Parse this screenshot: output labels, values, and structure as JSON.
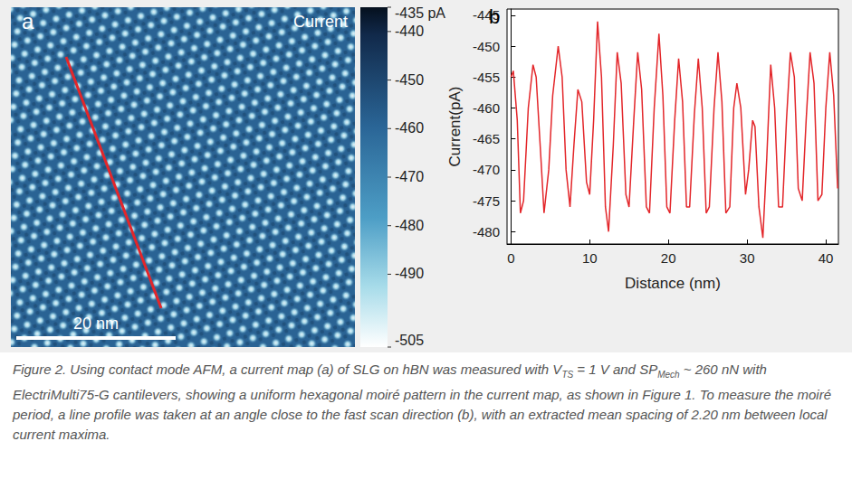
{
  "chart_data": [
    {
      "type": "image_map",
      "label": "a",
      "title": "Current",
      "scale_bar": "20 nm",
      "colorbar": {
        "range": [
          -505,
          -435
        ],
        "ticks": [
          {
            "value": -435,
            "label": "-435 pA"
          },
          -440,
          -450,
          -460,
          -470,
          -480,
          -490,
          -505
        ]
      }
    },
    {
      "type": "line",
      "label": "b",
      "x_label": "Distance (nm)",
      "y_label": "Current(pA)",
      "color": "#e3262a",
      "grid": false,
      "xlim": [
        -0.5,
        41.6
      ],
      "xticks": [
        0,
        10,
        20,
        30,
        40
      ],
      "ylim": [
        -482,
        -444
      ],
      "yticks": [
        -480,
        -475,
        -470,
        -465,
        -460,
        -455,
        -450,
        -445
      ],
      "x": [
        0,
        0.3,
        0.8,
        1.2,
        1.6,
        2.2,
        2.8,
        3.2,
        3.8,
        4.2,
        4.8,
        5.3,
        6.0,
        6.5,
        7.0,
        7.5,
        8.0,
        8.5,
        9.0,
        9.6,
        10.0,
        10.5,
        11.0,
        11.5,
        12.0,
        12.4,
        13.0,
        13.5,
        14.0,
        14.6,
        15.0,
        15.6,
        16.1,
        16.6,
        17.2,
        17.6,
        18.2,
        18.8,
        19.3,
        19.8,
        20.2,
        20.8,
        21.3,
        21.8,
        22.3,
        22.7,
        23.3,
        23.8,
        24.3,
        24.8,
        25.2,
        25.8,
        26.3,
        26.8,
        27.3,
        27.8,
        28.3,
        28.7,
        29.2,
        29.8,
        30.2,
        30.7,
        31.0,
        31.5,
        32.0,
        32.5,
        33.0,
        33.5,
        34.0,
        34.5,
        35.0,
        35.5,
        36.0,
        36.5,
        37.0,
        37.5,
        38.0,
        38.5,
        39.0,
        39.5,
        40.0,
        40.5,
        41.0,
        41.5
      ],
      "values": [
        -455,
        -454,
        -462,
        -477,
        -475,
        -460,
        -453,
        -455,
        -468,
        -477,
        -470,
        -458,
        -450,
        -455,
        -470,
        -476,
        -466,
        -457,
        -459,
        -472,
        -474,
        -462,
        -446,
        -455,
        -476,
        -480,
        -466,
        -451,
        -456,
        -474,
        -476,
        -462,
        -451,
        -457,
        -476,
        -477,
        -460,
        -448,
        -458,
        -476,
        -477,
        -462,
        -452,
        -459,
        -476,
        -476,
        -461,
        -452,
        -460,
        -477,
        -476,
        -460,
        -451,
        -459,
        -477,
        -476,
        -460,
        -456,
        -460,
        -474,
        -470,
        -462,
        -463,
        -476,
        -481,
        -468,
        -453,
        -460,
        -476,
        -476,
        -462,
        -451,
        -455,
        -473,
        -475,
        -462,
        -451,
        -456,
        -475,
        -474,
        -460,
        -451,
        -458,
        -473
      ]
    }
  ],
  "caption": [
    {
      "text": "Figure 2. Using contact mode AFM, a current map (a) of SLG on hBN was measured with V"
    },
    {
      "sub": "TS"
    },
    {
      "text": " = 1 V and SP"
    },
    {
      "sub": "Mech"
    },
    {
      "text": " ~ 260 nN with ElectriMulti75-G cantilevers, showing a uniform hexagonal moiré pattern in the current map, as shown in Figure 1. To measure the moiré period, a line profile was taken at an angle close to the fast scan direction (b), with an extracted mean spacing of 2.20 nm between local current maxima."
    }
  ]
}
